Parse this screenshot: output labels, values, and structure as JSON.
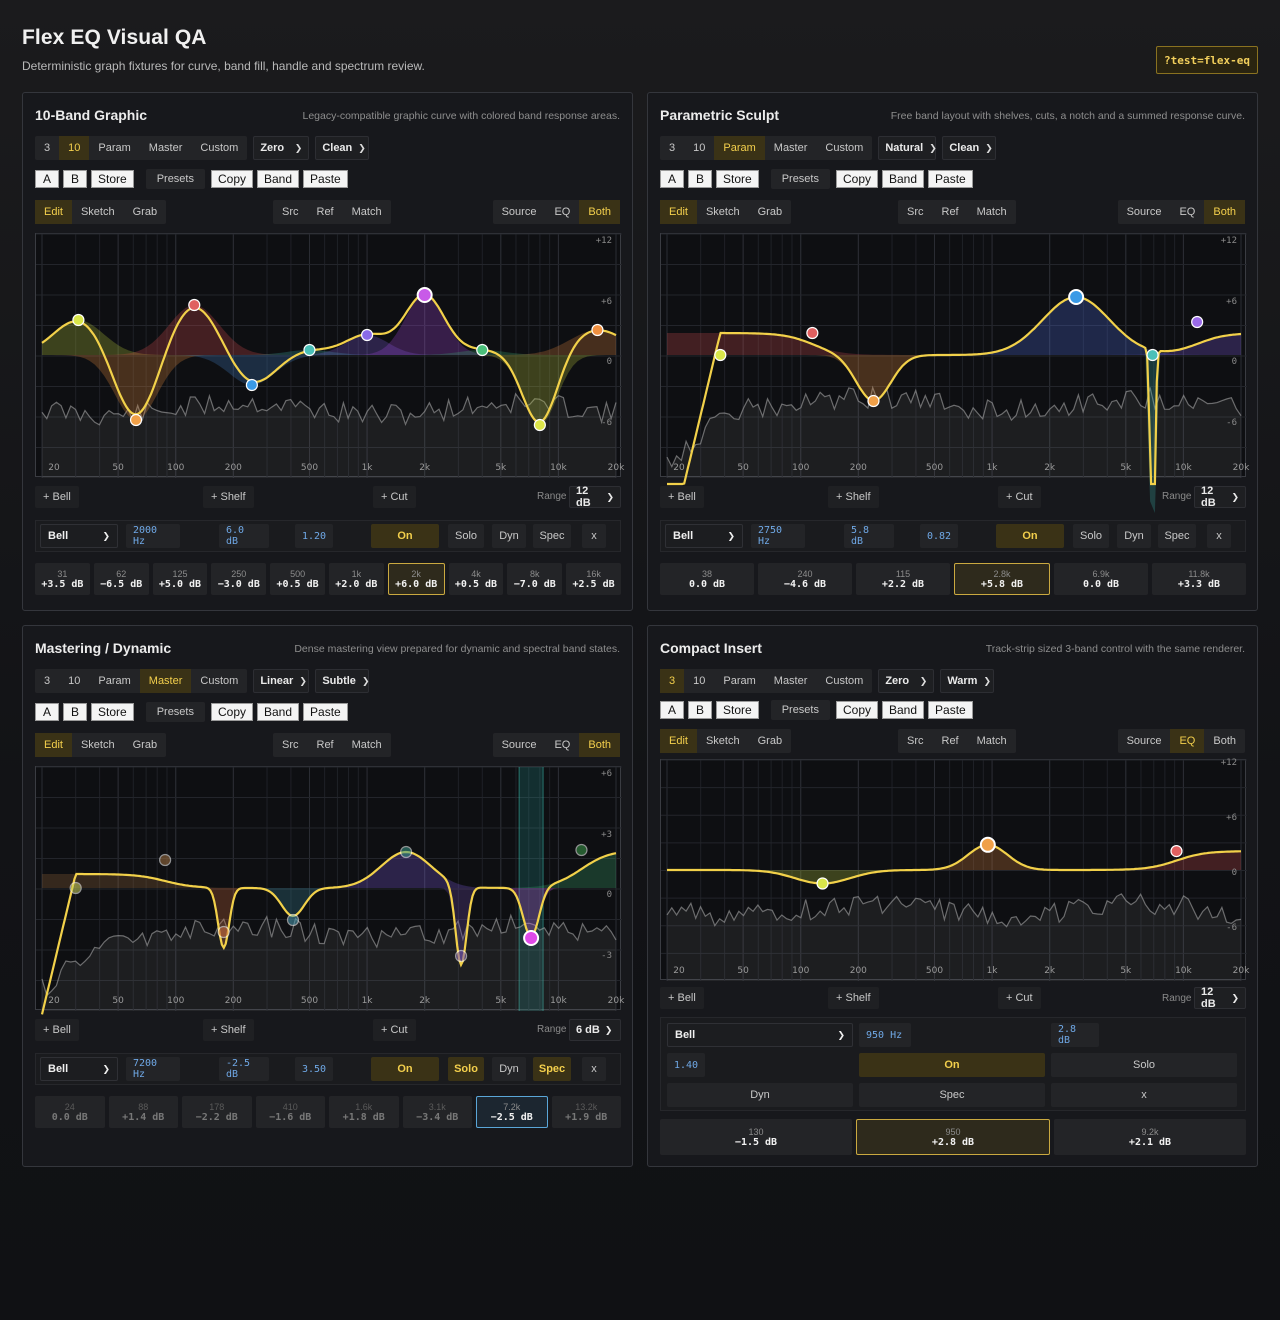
{
  "header": {
    "title": "Flex EQ Visual QA",
    "subtitle": "Deterministic graph fixtures for curve, band fill, handle and spectrum review.",
    "badge": "?test=flex-eq"
  },
  "common": {
    "mode_buttons": [
      "3",
      "10",
      "Param",
      "Master",
      "Custom"
    ],
    "ab_buttons": [
      "A",
      "B",
      "Store"
    ],
    "presets": "Presets",
    "clip_buttons": [
      "Copy",
      "Band",
      "Paste"
    ],
    "tool_buttons": [
      "Edit",
      "Sketch",
      "Grab"
    ],
    "ref_buttons": [
      "Src",
      "Ref",
      "Match"
    ],
    "view_buttons": [
      "Source",
      "EQ",
      "Both"
    ],
    "add_bell": "+ Bell",
    "add_shelf": "+ Shelf",
    "add_cut": "+ Cut",
    "range_label": "Range",
    "on": "On",
    "solo": "Solo",
    "dyn": "Dyn",
    "spec": "Spec",
    "close": "x",
    "freq_labels": [
      "20",
      "50",
      "100",
      "200",
      "500",
      "1k",
      "2k",
      "5k",
      "10k",
      "20k"
    ]
  },
  "panels": [
    {
      "title": "10-Band Graphic",
      "desc": "Legacy-compatible graphic curve with colored band response areas.",
      "mode": "10",
      "algo": "Zero",
      "char": "Clean",
      "tool": "Edit",
      "view": "Both",
      "range": "12 dB",
      "db_labels": [
        "+12",
        "+6",
        "0",
        "-6"
      ],
      "control": {
        "type": "Bell",
        "freq": "2000 Hz",
        "gain": "6.0 dB",
        "q": "1.20",
        "solo_on": false,
        "spec_on": false
      },
      "bands": [
        {
          "f": "31",
          "g": "+3.5 dB"
        },
        {
          "f": "62",
          "g": "−6.5 dB"
        },
        {
          "f": "125",
          "g": "+5.0 dB"
        },
        {
          "f": "250",
          "g": "−3.0 dB"
        },
        {
          "f": "500",
          "g": "+0.5 dB"
        },
        {
          "f": "1k",
          "g": "+2.0 dB"
        },
        {
          "f": "2k",
          "g": "+6.0 dB"
        },
        {
          "f": "4k",
          "g": "+0.5 dB"
        },
        {
          "f": "8k",
          "g": "−7.0 dB"
        },
        {
          "f": "16k",
          "g": "+2.5 dB"
        }
      ],
      "selected_band": 6
    },
    {
      "title": "Parametric Sculpt",
      "desc": "Free band layout with shelves, cuts, a notch and a summed response curve.",
      "mode": "Param",
      "algo": "Natural",
      "char": "Clean",
      "tool": "Edit",
      "view": "Both",
      "range": "12 dB",
      "db_labels": [
        "+12",
        "+6",
        "0",
        "-6"
      ],
      "control": {
        "type": "Bell",
        "freq": "2750 Hz",
        "gain": "5.8 dB",
        "q": "0.82",
        "solo_on": false,
        "spec_on": false
      },
      "bands": [
        {
          "f": "38",
          "g": "0.0 dB"
        },
        {
          "f": "240",
          "g": "−4.6 dB"
        },
        {
          "f": "115",
          "g": "+2.2 dB"
        },
        {
          "f": "2.8k",
          "g": "+5.8 dB"
        },
        {
          "f": "6.9k",
          "g": "0.0 dB"
        },
        {
          "f": "11.8k",
          "g": "+3.3 dB"
        }
      ],
      "selected_band": 3
    },
    {
      "title": "Mastering / Dynamic",
      "desc": "Dense mastering view prepared for dynamic and spectral band states.",
      "mode": "Master",
      "algo": "Linear",
      "char": "Subtle",
      "tool": "Edit",
      "view": "Both",
      "range": "6 dB",
      "db_labels": [
        "+6",
        "+3",
        "0",
        "-3"
      ],
      "control": {
        "type": "Bell",
        "freq": "7200 Hz",
        "gain": "-2.5 dB",
        "q": "3.50",
        "solo_on": true,
        "spec_on": true
      },
      "bands": [
        {
          "f": "24",
          "g": "0.0 dB"
        },
        {
          "f": "88",
          "g": "+1.4 dB"
        },
        {
          "f": "178",
          "g": "−2.2 dB"
        },
        {
          "f": "410",
          "g": "−1.6 dB"
        },
        {
          "f": "1.6k",
          "g": "+1.8 dB"
        },
        {
          "f": "3.1k",
          "g": "−3.4 dB"
        },
        {
          "f": "7.2k",
          "g": "−2.5 dB"
        },
        {
          "f": "13.2k",
          "g": "+1.9 dB"
        }
      ],
      "selected_band": 6
    },
    {
      "title": "Compact Insert",
      "desc": "Track-strip sized 3-band control with the same renderer.",
      "mode": "3",
      "algo": "Zero",
      "char": "Warm",
      "tool": "Edit",
      "view": "EQ",
      "range": "12 dB",
      "db_labels": [
        "+12",
        "+6",
        "0",
        "-6"
      ],
      "control": {
        "type": "Bell",
        "freq": "950 Hz",
        "gain": "2.8 dB",
        "q": "1.40",
        "solo_on": false,
        "spec_on": false
      },
      "bands": [
        {
          "f": "130",
          "g": "−1.5 dB"
        },
        {
          "f": "950",
          "g": "+2.8 dB"
        },
        {
          "f": "9.2k",
          "g": "+2.1 dB"
        }
      ],
      "selected_band": 1
    }
  ]
}
